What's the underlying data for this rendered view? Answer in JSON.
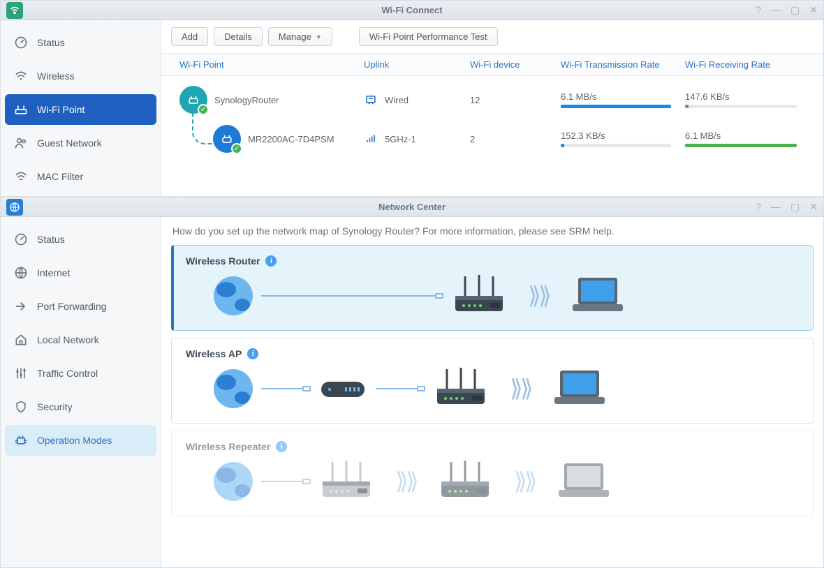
{
  "colors": {
    "primary": "#2b73c9",
    "sidebar_active": "#1f5fbf",
    "sidebar_highlight": "#d9edf9",
    "green": "#3db556",
    "teal": "#1ea7b3",
    "blue_bar": "#1e88e5",
    "green_bar": "#4caf50",
    "bar_bg": "#e4e9ed"
  },
  "wifi_window": {
    "title": "Wi-Fi Connect",
    "app_icon_bg": "#2aa37a",
    "sidebar": [
      {
        "label": "Status",
        "icon": "gauge"
      },
      {
        "label": "Wireless",
        "icon": "wifi"
      },
      {
        "label": "Wi-Fi Point",
        "icon": "router",
        "active": true
      },
      {
        "label": "Guest Network",
        "icon": "person"
      },
      {
        "label": "MAC Filter",
        "icon": "filter"
      }
    ],
    "toolbar": {
      "add": "Add",
      "details": "Details",
      "manage": "Manage",
      "perf": "Wi-Fi Point Performance Test"
    },
    "columns": {
      "point": "Wi-Fi Point",
      "uplink": "Uplink",
      "device": "Wi-Fi device",
      "tx": "Wi-Fi Transmission Rate",
      "rx": "Wi-Fi Receiving Rate"
    },
    "rows": [
      {
        "name": "SynologyRouter",
        "uplink": "Wired",
        "uplink_icon": "ethernet",
        "devices": "12",
        "tx": {
          "label": "6.1 MB/s",
          "pct": 100,
          "color": "#1e88e5"
        },
        "rx": {
          "label": "147.6 KB/s",
          "pct": 3,
          "color": "#4caf50"
        }
      },
      {
        "name": "MR2200AC-7D4PSM",
        "uplink": "5GHz-1",
        "uplink_icon": "signal",
        "devices": "2",
        "child": true,
        "tx": {
          "label": "152.3 KB/s",
          "pct": 3,
          "color": "#1e88e5"
        },
        "rx": {
          "label": "6.1 MB/s",
          "pct": 100,
          "color": "#4caf50"
        }
      }
    ]
  },
  "net_window": {
    "title": "Network Center",
    "app_icon_bg": "#2a7ed2",
    "help": "How do you set up the network map of Synology Router? For more information, please see SRM help.",
    "sidebar": [
      {
        "label": "Status",
        "icon": "gauge"
      },
      {
        "label": "Internet",
        "icon": "globe"
      },
      {
        "label": "Port Forwarding",
        "icon": "arrow"
      },
      {
        "label": "Local Network",
        "icon": "home"
      },
      {
        "label": "Traffic Control",
        "icon": "sliders"
      },
      {
        "label": "Security",
        "icon": "shield"
      },
      {
        "label": "Operation Modes",
        "icon": "chip",
        "highlight": true
      }
    ],
    "modes": [
      {
        "title": "Wireless Router",
        "selected": true,
        "chain": [
          "globe",
          "line-long-plug",
          "router",
          "wave",
          "laptop"
        ]
      },
      {
        "title": "Wireless AP",
        "chain": [
          "globe",
          "line-short-plug",
          "modem",
          "line-short-plug",
          "router",
          "wave",
          "laptop"
        ]
      },
      {
        "title": "Wireless Repeater",
        "disabled": true,
        "chain": [
          "globe",
          "line-short-plug",
          "router-gray",
          "wave",
          "router",
          "wave",
          "laptop"
        ]
      }
    ]
  }
}
